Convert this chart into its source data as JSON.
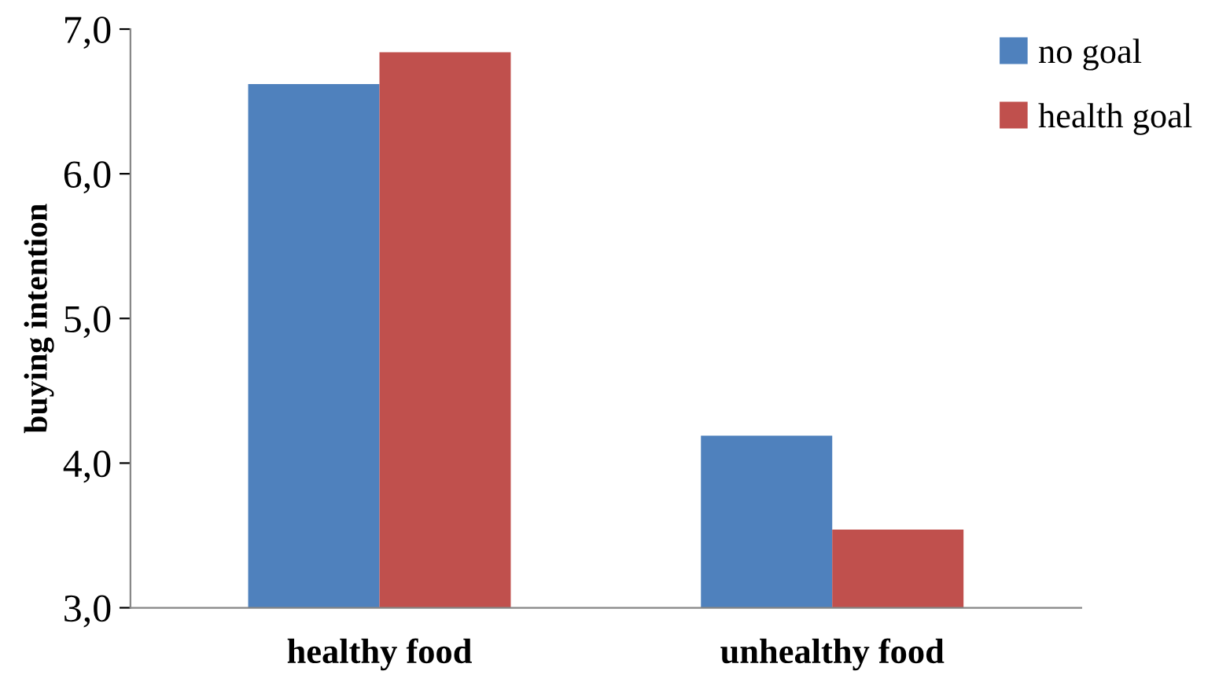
{
  "chart_data": {
    "type": "bar",
    "ylabel": "buying intention",
    "categories": [
      "healthy food",
      "unhealthy food"
    ],
    "series": [
      {
        "name": "no goal",
        "color": "#4f81bd",
        "values": [
          6.62,
          4.19
        ]
      },
      {
        "name": "health goal",
        "color": "#c0504d",
        "values": [
          6.84,
          3.54
        ]
      }
    ],
    "ylim": [
      3,
      7
    ],
    "yticks": [
      {
        "value": 3,
        "label": "3,0"
      },
      {
        "value": 4,
        "label": "4,0"
      },
      {
        "value": 5,
        "label": "5,0"
      },
      {
        "value": 6,
        "label": "6,0"
      },
      {
        "value": 7,
        "label": "7,0"
      }
    ],
    "grid": false,
    "legend": "top right"
  }
}
